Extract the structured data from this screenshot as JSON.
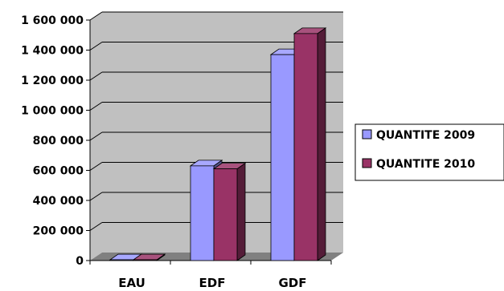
{
  "chart_data": {
    "type": "bar",
    "categories": [
      "EAU",
      "EDF",
      "GDF"
    ],
    "series": [
      {
        "name": "QUANTITE 2009",
        "values": [
          5000,
          630000,
          1370000
        ],
        "color": "#9999ff"
      },
      {
        "name": "QUANTITE 2010",
        "values": [
          5000,
          610000,
          1510000
        ],
        "color": "#993366"
      }
    ],
    "yticks": [
      "0",
      "200 000",
      "400 000",
      "600 000",
      "800 000",
      "1 000 000",
      "1 200 000",
      "1 400 000",
      "1 600 000"
    ],
    "ylim": [
      0,
      1600000
    ],
    "grid": true,
    "legend_position": "right",
    "style": "3d-clustered-column",
    "wall_color": "#c0c0c0",
    "title": "",
    "xlabel": "",
    "ylabel": ""
  }
}
